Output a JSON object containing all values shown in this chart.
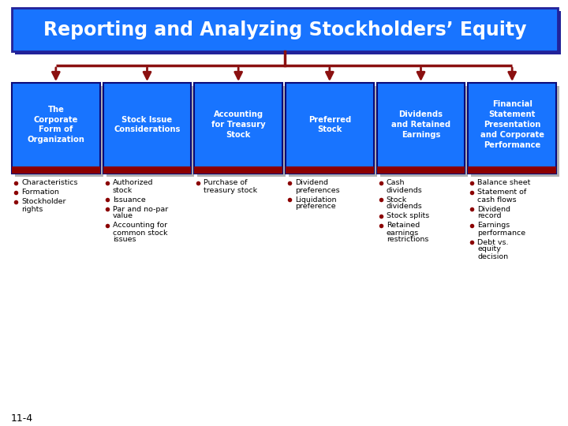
{
  "title": "Reporting and Analyzing Stockholders’ Equity",
  "title_bg": "#1874FF",
  "title_border": "#222299",
  "box_blue": "#1874FF",
  "box_dark_red": "#8B0000",
  "bullet_color": "#8B0000",
  "connector_color": "#8B1010",
  "bg_color": "#FFFFFF",
  "slide_number": "11-4",
  "boxes": [
    {
      "label": "The\nCorporate\nForm of\nOrganization"
    },
    {
      "label": "Stock Issue\nConsiderations"
    },
    {
      "label": "Accounting\nfor Treasury\nStock"
    },
    {
      "label": "Preferred\nStock"
    },
    {
      "label": "Dividends\nand Retained\nEarnings"
    },
    {
      "label": "Financial\nStatement\nPresentation\nand Corporate\nPerformance"
    }
  ],
  "bullets": [
    [
      "Characteristics",
      "Formation",
      "Stockholder\nrights"
    ],
    [
      "Authorized\nstock",
      "Issuance",
      "Par and no-par\nvalue",
      "Accounting for\ncommon stock\nissues"
    ],
    [
      "Purchase of\ntreasury stock"
    ],
    [
      "Dividend\npreferences",
      "Liquidation\npreference"
    ],
    [
      "Cash\ndividends",
      "Stock\ndividends",
      "Stock splits",
      "Retained\nearnings\nrestrictions"
    ],
    [
      "Balance sheet",
      "Statement of\ncash flows",
      "Dividend\nrecord",
      "Earnings\nperformance",
      "Debt vs.\nequity\ndecision"
    ]
  ]
}
